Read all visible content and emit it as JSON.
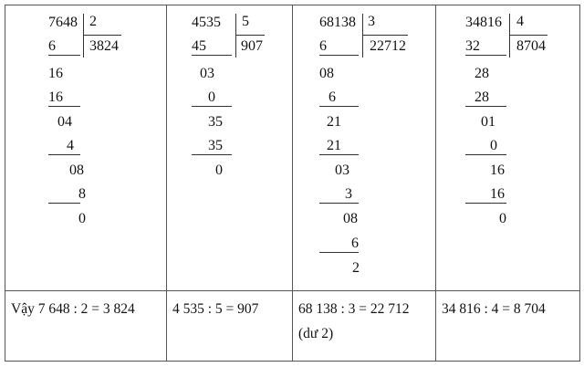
{
  "divisions": [
    {
      "dividend": "7648",
      "divisor": "2",
      "quotient": "3824",
      "steps": [
        "6",
        "16",
        "16",
        "04",
        "4",
        "08",
        "8",
        "0"
      ],
      "result": [
        "Vậy 7 648 : 2 = 3 824"
      ]
    },
    {
      "dividend": "4535",
      "divisor": "5",
      "quotient": "907",
      "steps": [
        "45",
        "03",
        "0",
        "35",
        "35",
        "0"
      ],
      "result": [
        "4 535 : 5 = 907"
      ]
    },
    {
      "dividend": "68138",
      "divisor": "3",
      "quotient": "22712",
      "steps": [
        "6",
        "08",
        "6",
        "21",
        "21",
        "03",
        "3",
        "08",
        "6",
        "2"
      ],
      "result": [
        "68 138 : 3 = 22 712",
        "(dư 2)"
      ]
    },
    {
      "dividend": "34816",
      "divisor": "4",
      "quotient": "8704",
      "steps": [
        "32",
        "28",
        "28",
        "01",
        "0",
        "16",
        "16",
        "0"
      ],
      "result": [
        "34 816 : 4 = 8 704"
      ]
    }
  ]
}
